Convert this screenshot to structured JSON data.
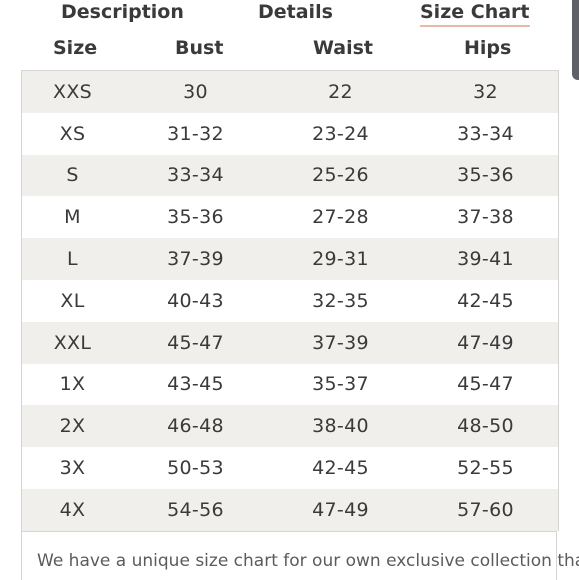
{
  "tabs": {
    "description": "Description",
    "details": "Details",
    "size_chart": "Size Chart"
  },
  "table": {
    "headers": [
      "Size",
      "Bust",
      "Waist",
      "Hips"
    ],
    "rows": [
      [
        "XXS",
        "30",
        "22",
        "32"
      ],
      [
        "XS",
        "31-32",
        "23-24",
        "33-34"
      ],
      [
        "S",
        "33-34",
        "25-26",
        "35-36"
      ],
      [
        "M",
        "35-36",
        "27-28",
        "37-38"
      ],
      [
        "L",
        "37-39",
        "29-31",
        "39-41"
      ],
      [
        "XL",
        "40-43",
        "32-35",
        "42-45"
      ],
      [
        "XXL",
        "45-47",
        "37-39",
        "47-49"
      ],
      [
        "1X",
        "43-45",
        "35-37",
        "45-47"
      ],
      [
        "2X",
        "46-48",
        "38-40",
        "48-50"
      ],
      [
        "3X",
        "50-53",
        "42-45",
        "52-55"
      ],
      [
        "4X",
        "54-56",
        "47-49",
        "57-60"
      ]
    ]
  },
  "note": {
    "text": "We have a unique size chart for our own exclusive collection that"
  },
  "colors": {
    "stripe": "#f1efeb",
    "tab_underline": "#e6b9a8",
    "text": "#3a3a3a"
  }
}
